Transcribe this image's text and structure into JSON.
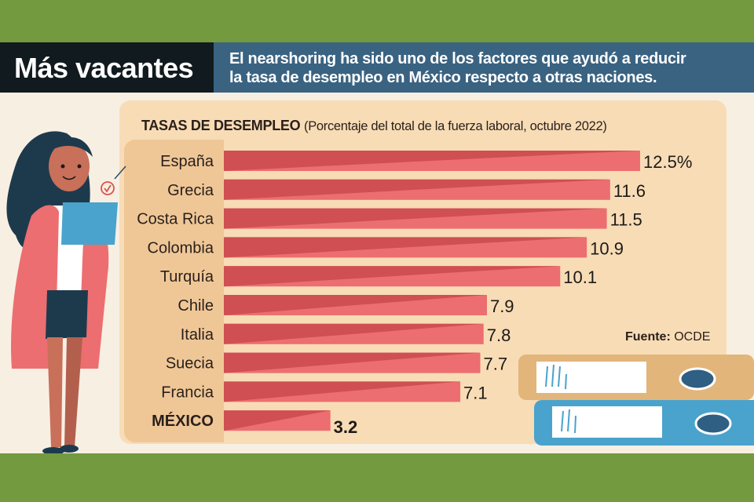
{
  "header": {
    "title": "Más vacantes",
    "subtitle_line1": "El nearshoring ha sido uno de los factores que ayudó a reducir",
    "subtitle_line2": "la tasa de desempleo en México respecto a otras naciones."
  },
  "source": {
    "label": "Fuente:",
    "value": "OCDE"
  },
  "colors": {
    "bar_dark": "#cf4f52",
    "bar_light": "#ec6e70",
    "green": "#739a3e",
    "navy": "#3a6382"
  },
  "chart_data": {
    "type": "bar",
    "orientation": "horizontal",
    "title": "TASAS DE DESEMPLEO",
    "subtitle": "(Porcentaje del total de la fuerza laboral, octubre 2022)",
    "categories": [
      "España",
      "Grecia",
      "Costa Rica",
      "Colombia",
      "Turquía",
      "Chile",
      "Italia",
      "Suecia",
      "Francia",
      "MÉXICO"
    ],
    "values": [
      12.5,
      11.6,
      11.5,
      10.9,
      10.1,
      7.9,
      7.8,
      7.7,
      7.1,
      3.2
    ],
    "labels": [
      "12.5%",
      "11.6",
      "11.5",
      "10.9",
      "10.1",
      "7.9",
      "7.8",
      "7.7",
      "7.1",
      "3.2"
    ],
    "highlight": "MÉXICO",
    "unit": "%",
    "xlim": [
      0,
      12.5
    ],
    "grid": false
  }
}
